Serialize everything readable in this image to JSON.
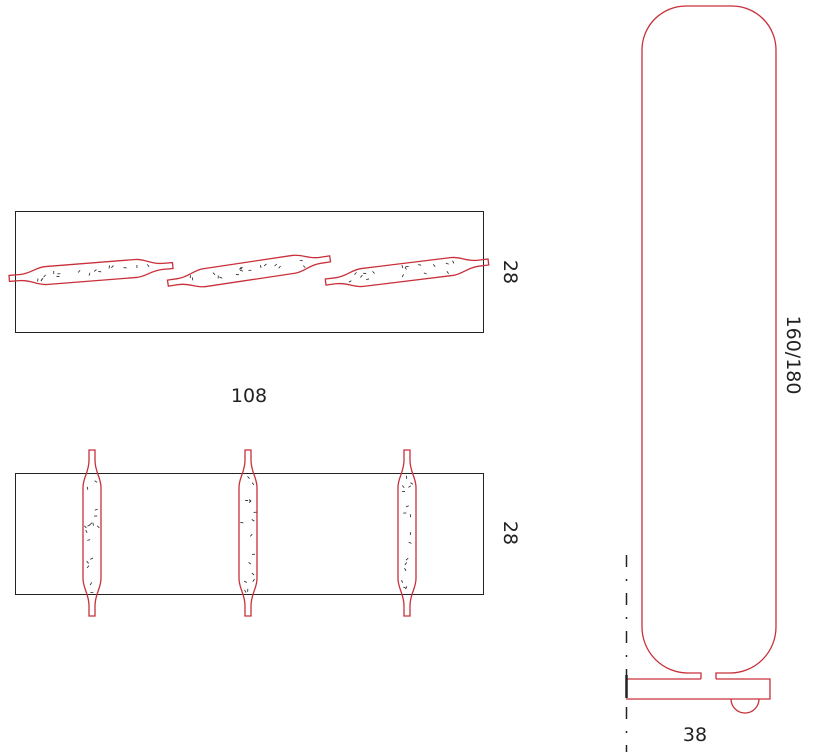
{
  "dimensions": {
    "top_view_height": "28",
    "width": "108",
    "front_view_height": "28",
    "total_height": "160/180",
    "depth": "38"
  },
  "colors": {
    "outline": "#c8303a",
    "frame": "#222222"
  }
}
